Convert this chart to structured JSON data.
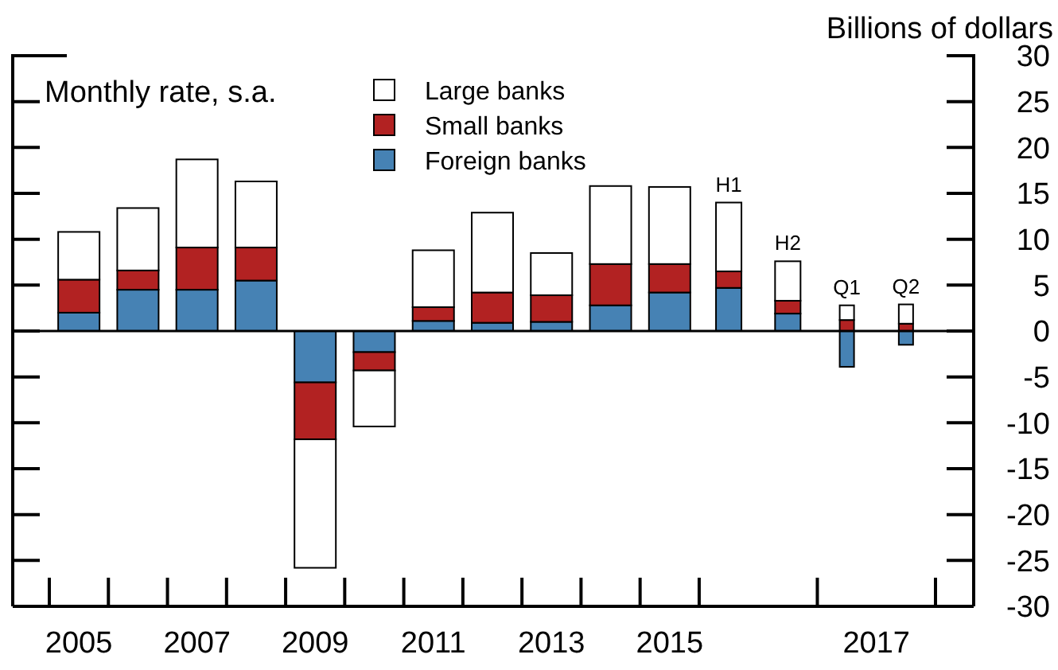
{
  "chart_data": {
    "type": "bar",
    "stacked": true,
    "ylabel": "Billions of dollars",
    "annotations": [
      "Monthly rate, s.a.",
      "2017",
      {
        "text": "H1",
        "y": 14.0
      },
      {
        "text": "H2",
        "y": 7.6
      },
      {
        "text": "Q1",
        "y": 2.8
      },
      {
        "text": "Q2",
        "y": 2.9
      }
    ],
    "categories": [
      "2005",
      null,
      "2007",
      null,
      "2009",
      null,
      "2011",
      null,
      "2013",
      null,
      "2015",
      null,
      null,
      null,
      null
    ],
    "series": [
      {
        "name": "Foreign banks",
        "color": "#4682b4",
        "values": [
          2.0,
          4.5,
          4.5,
          5.5,
          -5.6,
          -2.3,
          1.1,
          0.9,
          1.0,
          2.8,
          4.2,
          4.7,
          1.9,
          -3.9,
          -1.5
        ]
      },
      {
        "name": "Small banks",
        "color": "#b22222",
        "values": [
          3.6,
          2.1,
          4.6,
          3.6,
          -6.2,
          -2.0,
          1.5,
          3.3,
          2.9,
          4.5,
          3.1,
          1.8,
          1.4,
          1.2,
          0.8
        ]
      },
      {
        "name": "Large banks",
        "color": "#ffffff",
        "values": [
          5.2,
          6.8,
          9.6,
          7.2,
          -14.0,
          -6.1,
          6.2,
          8.7,
          4.6,
          8.5,
          8.4,
          7.5,
          4.3,
          1.6,
          2.1
        ]
      }
    ],
    "ylim": [
      -30,
      30
    ],
    "yticks": [
      -30,
      -25,
      -20,
      -15,
      -10,
      -5,
      0,
      5,
      10,
      15,
      20,
      25,
      30
    ],
    "legend": "top"
  }
}
